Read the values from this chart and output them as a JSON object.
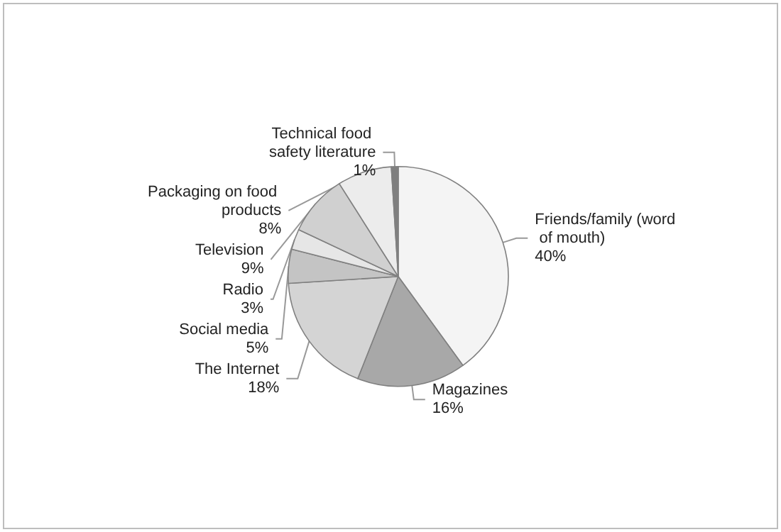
{
  "chart_data": {
    "type": "pie",
    "categories": [
      "Friends/family (word of mouth)",
      "Magazines",
      "The Internet",
      "Social media",
      "Radio",
      "Television",
      "Packaging on food products",
      "Technical food safety literature"
    ],
    "values": [
      40,
      16,
      18,
      5,
      3,
      9,
      8,
      1
    ],
    "value_labels": [
      "40%",
      "16%",
      "18%",
      "5%",
      "3%",
      "9%",
      "8%",
      "1%"
    ],
    "colors": [
      "#f4f4f4",
      "#a8a8a8",
      "#d4d4d4",
      "#c4c4c4",
      "#e6e6e6",
      "#d0d0d0",
      "#ececec",
      "#7f7f7f"
    ],
    "legend": false
  }
}
